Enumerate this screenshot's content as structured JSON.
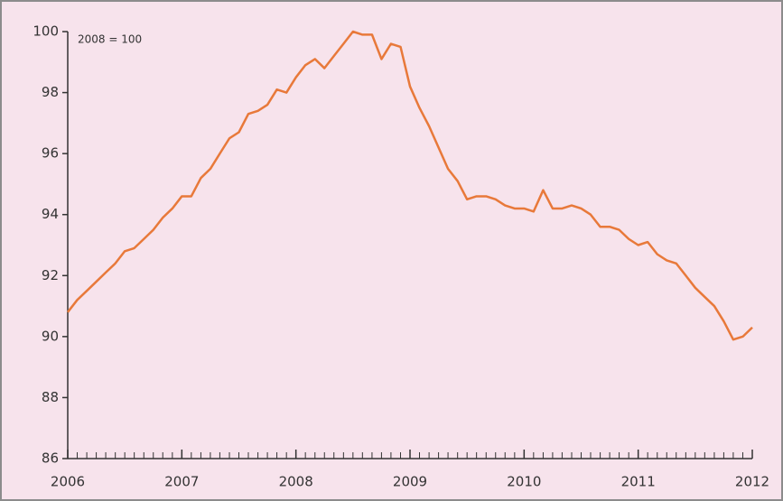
{
  "chart_data": {
    "type": "line",
    "annotation": "2008 = 100",
    "x": [
      2006,
      2006.083,
      2006.167,
      2006.25,
      2006.333,
      2006.417,
      2006.5,
      2006.583,
      2006.667,
      2006.75,
      2006.833,
      2006.917,
      2007,
      2007.083,
      2007.167,
      2007.25,
      2007.333,
      2007.417,
      2007.5,
      2007.583,
      2007.667,
      2007.75,
      2007.833,
      2007.917,
      2008,
      2008.083,
      2008.167,
      2008.25,
      2008.333,
      2008.417,
      2008.5,
      2008.583,
      2008.667,
      2008.75,
      2008.833,
      2008.917,
      2009,
      2009.083,
      2009.167,
      2009.25,
      2009.333,
      2009.417,
      2009.5,
      2009.583,
      2009.667,
      2009.75,
      2009.833,
      2009.917,
      2010,
      2010.083,
      2010.167,
      2010.25,
      2010.333,
      2010.417,
      2010.5,
      2010.583,
      2010.667,
      2010.75,
      2010.833,
      2010.917,
      2011,
      2011.083,
      2011.167,
      2011.25,
      2011.333,
      2011.417,
      2011.5,
      2011.583,
      2011.667,
      2011.75,
      2011.833,
      2011.917,
      2012
    ],
    "series": [
      {
        "color": "#e8793a",
        "values": [
          90.8,
          91.2,
          91.5,
          91.8,
          92.1,
          92.4,
          92.8,
          92.9,
          93.2,
          93.5,
          93.9,
          94.2,
          94.6,
          94.6,
          95.2,
          95.5,
          96.0,
          96.5,
          96.7,
          97.3,
          97.4,
          97.6,
          98.1,
          98.0,
          98.5,
          98.9,
          99.1,
          98.8,
          99.2,
          99.6,
          100.0,
          99.9,
          99.9,
          99.1,
          99.6,
          99.5,
          98.2,
          97.5,
          96.9,
          96.2,
          95.5,
          95.1,
          94.5,
          94.6,
          94.6,
          94.5,
          94.3,
          94.2,
          94.2,
          94.1,
          94.8,
          94.2,
          94.2,
          94.3,
          94.2,
          94.0,
          93.6,
          93.6,
          93.5,
          93.2,
          93.0,
          93.1,
          92.7,
          92.5,
          92.4,
          92.0,
          91.6,
          91.3,
          91.0,
          90.5,
          89.9,
          90.0,
          90.3
        ]
      }
    ],
    "xlim": [
      2006,
      2012
    ],
    "xticks": [
      2006,
      2007,
      2008,
      2009,
      2010,
      2011,
      2012
    ],
    "ylim": [
      86,
      100
    ],
    "yticks": [
      86,
      88,
      90,
      92,
      94,
      96,
      98,
      100
    ]
  }
}
